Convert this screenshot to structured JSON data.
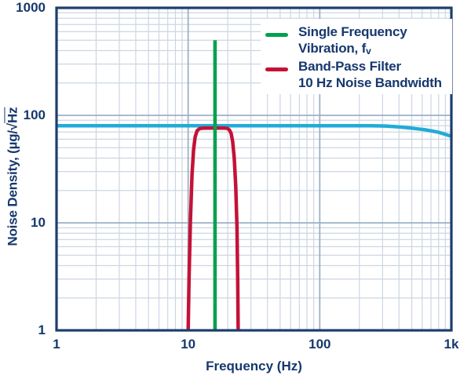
{
  "figure": {
    "background": "#ffffff",
    "text_color": "#16386e",
    "frame_color": "#1c3e6d",
    "grid_minor_color": "#ccd6e3",
    "grid_major_color": "#9db0c7",
    "legend_background": "#ffffff"
  },
  "chart_data": {
    "type": "line",
    "x_scale": "log",
    "y_scale": "log",
    "grid": "on",
    "legend_position": "top-right",
    "xlabel": "Frequency (Hz)",
    "ylabel_prefix": "Noise Density, (µg/",
    "ylabel_radical": "√",
    "ylabel_radicand": "Hz",
    "x_axis": {
      "min": 1,
      "max": 1000,
      "ticks": [
        {
          "value": 1,
          "label": "1"
        },
        {
          "value": 10,
          "label": "10"
        },
        {
          "value": 100,
          "label": "100"
        },
        {
          "value": 1000,
          "label": "1k"
        }
      ]
    },
    "y_axis": {
      "min": 1,
      "max": 1000,
      "ticks": [
        {
          "value": 1,
          "label": "1"
        },
        {
          "value": 10,
          "label": "10"
        },
        {
          "value": 100,
          "label": "100"
        },
        {
          "value": 1000,
          "label": "1000"
        }
      ]
    },
    "series": [
      {
        "id": "broadband-noise-density",
        "color": "#22abd7",
        "stroke_width": 4.5,
        "points": [
          [
            1,
            80
          ],
          [
            250,
            80
          ],
          [
            315,
            79.5
          ],
          [
            400,
            78
          ],
          [
            500,
            76
          ],
          [
            630,
            73.5
          ],
          [
            800,
            69.5
          ],
          [
            1000,
            64
          ]
        ]
      },
      {
        "id": "band-pass-filter",
        "color": "#c41237",
        "stroke_width": 4.5,
        "points": [
          [
            10,
            1
          ],
          [
            10.15,
            3
          ],
          [
            10.4,
            10
          ],
          [
            10.7,
            28
          ],
          [
            11,
            48
          ],
          [
            11.3,
            63
          ],
          [
            11.7,
            72
          ],
          [
            12.3,
            75.5
          ],
          [
            13.2,
            76
          ],
          [
            19,
            76
          ],
          [
            19.9,
            75.5
          ],
          [
            20.6,
            73
          ],
          [
            21.2,
            68
          ],
          [
            21.8,
            57
          ],
          [
            22.4,
            40
          ],
          [
            23,
            22
          ],
          [
            23.5,
            9
          ],
          [
            23.8,
            3
          ],
          [
            24,
            1
          ]
        ]
      },
      {
        "id": "single-frequency-vibration",
        "color": "#00a14e",
        "stroke_width": 4.5,
        "points": [
          [
            16,
            1
          ],
          [
            16,
            500
          ]
        ]
      }
    ],
    "legend": {
      "items": [
        {
          "id": "single-frequency-vibration",
          "swatch_color": "#00a14e",
          "line1": "Single Frequency",
          "line2": "Vibration, f",
          "line2_sub": "v"
        },
        {
          "id": "band-pass-filter",
          "swatch_color": "#c41237",
          "line1": "Band-Pass Filter",
          "line2": "10 Hz Noise Bandwidth",
          "line2_sub": ""
        }
      ]
    }
  }
}
